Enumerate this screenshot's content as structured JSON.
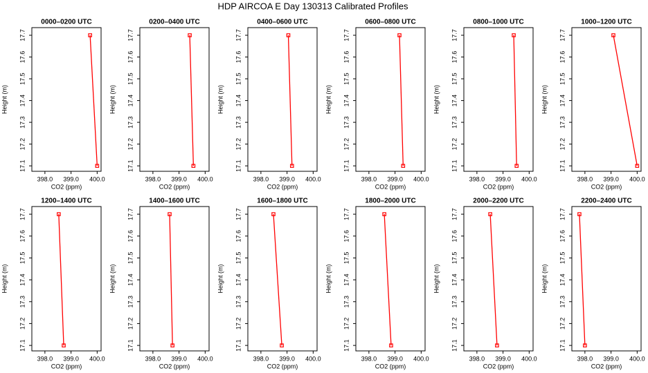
{
  "title": "HDP AIRCOA E  Day 130313  Calibrated Profiles",
  "chart_data": [
    {
      "type": "line",
      "title": "0000–0200 UTC",
      "x_label": "CO2 (ppm)",
      "y_label": "Height (m)",
      "color": "#ff0000",
      "x": [
        399.73,
        400.0
      ],
      "values": [
        17.7,
        17.1
      ],
      "xlim": [
        397.5,
        400.15
      ],
      "ylim": [
        17.075,
        17.735
      ],
      "xticks": [
        {
          "value": 398,
          "label": "398.0"
        },
        {
          "value": 399,
          "label": "399.0"
        },
        {
          "value": 400,
          "label": "400.0"
        }
      ],
      "yticks": [
        17.1,
        17.2,
        17.3,
        17.4,
        17.5,
        17.6,
        17.7
      ]
    },
    {
      "type": "line",
      "title": "0200–0400 UTC",
      "x_label": "CO2 (ppm)",
      "y_label": "Height (m)",
      "color": "#ff0000",
      "x": [
        399.41,
        399.55
      ],
      "values": [
        17.7,
        17.1
      ],
      "xlim": [
        397.5,
        400.15
      ],
      "ylim": [
        17.075,
        17.735
      ],
      "xticks": [
        {
          "value": 398,
          "label": "398.0"
        },
        {
          "value": 399,
          "label": "399.0"
        },
        {
          "value": 400,
          "label": "400.0"
        }
      ],
      "yticks": [
        17.1,
        17.2,
        17.3,
        17.4,
        17.5,
        17.6,
        17.7
      ]
    },
    {
      "type": "line",
      "title": "0400–0600 UTC",
      "x_label": "CO2 (ppm)",
      "y_label": "Height (m)",
      "color": "#ff0000",
      "x": [
        399.05,
        399.19
      ],
      "values": [
        17.7,
        17.1
      ],
      "xlim": [
        397.5,
        400.15
      ],
      "ylim": [
        17.075,
        17.735
      ],
      "xticks": [
        {
          "value": 398,
          "label": "398.0"
        },
        {
          "value": 399,
          "label": "399.0"
        },
        {
          "value": 400,
          "label": "400.0"
        }
      ],
      "yticks": [
        17.1,
        17.2,
        17.3,
        17.4,
        17.5,
        17.6,
        17.7
      ]
    },
    {
      "type": "line",
      "title": "0600–0800 UTC",
      "x_label": "CO2 (ppm)",
      "y_label": "Height (m)",
      "color": "#ff0000",
      "x": [
        399.17,
        399.31
      ],
      "values": [
        17.7,
        17.1
      ],
      "xlim": [
        397.5,
        400.15
      ],
      "ylim": [
        17.075,
        17.735
      ],
      "xticks": [
        {
          "value": 398,
          "label": "398.0"
        },
        {
          "value": 399,
          "label": "399.0"
        },
        {
          "value": 400,
          "label": "400.0"
        }
      ],
      "yticks": [
        17.1,
        17.2,
        17.3,
        17.4,
        17.5,
        17.6,
        17.7
      ]
    },
    {
      "type": "line",
      "title": "0800–1000 UTC",
      "x_label": "CO2 (ppm)",
      "y_label": "Height (m)",
      "color": "#ff0000",
      "x": [
        399.41,
        399.52
      ],
      "values": [
        17.7,
        17.1
      ],
      "xlim": [
        397.5,
        400.15
      ],
      "ylim": [
        17.075,
        17.735
      ],
      "xticks": [
        {
          "value": 398,
          "label": "398.0"
        },
        {
          "value": 399,
          "label": "399.0"
        },
        {
          "value": 400,
          "label": "400.0"
        }
      ],
      "yticks": [
        17.1,
        17.2,
        17.3,
        17.4,
        17.5,
        17.6,
        17.7
      ]
    },
    {
      "type": "line",
      "title": "1000–1200 UTC",
      "x_label": "CO2 (ppm)",
      "y_label": "Height (m)",
      "color": "#ff0000",
      "x": [
        399.09,
        400.0
      ],
      "values": [
        17.7,
        17.1
      ],
      "xlim": [
        397.5,
        400.15
      ],
      "ylim": [
        17.075,
        17.735
      ],
      "xticks": [
        {
          "value": 398,
          "label": "398.0"
        },
        {
          "value": 399,
          "label": "399.0"
        },
        {
          "value": 400,
          "label": "400.0"
        }
      ],
      "yticks": [
        17.1,
        17.2,
        17.3,
        17.4,
        17.5,
        17.6,
        17.7
      ]
    },
    {
      "type": "line",
      "title": "1200–1400 UTC",
      "x_label": "CO2 (ppm)",
      "y_label": "Height (m)",
      "color": "#ff0000",
      "x": [
        398.53,
        398.72
      ],
      "values": [
        17.7,
        17.1
      ],
      "xlim": [
        397.5,
        400.15
      ],
      "ylim": [
        17.075,
        17.735
      ],
      "xticks": [
        {
          "value": 398,
          "label": "398.0"
        },
        {
          "value": 399,
          "label": "399.0"
        },
        {
          "value": 400,
          "label": "400.0"
        }
      ],
      "yticks": [
        17.1,
        17.2,
        17.3,
        17.4,
        17.5,
        17.6,
        17.7
      ]
    },
    {
      "type": "line",
      "title": "1400–1600 UTC",
      "x_label": "CO2 (ppm)",
      "y_label": "Height (m)",
      "color": "#ff0000",
      "x": [
        398.64,
        398.75
      ],
      "values": [
        17.7,
        17.1
      ],
      "xlim": [
        397.5,
        400.15
      ],
      "ylim": [
        17.075,
        17.735
      ],
      "xticks": [
        {
          "value": 398,
          "label": "398.0"
        },
        {
          "value": 399,
          "label": "399.0"
        },
        {
          "value": 400,
          "label": "400.0"
        }
      ],
      "yticks": [
        17.1,
        17.2,
        17.3,
        17.4,
        17.5,
        17.6,
        17.7
      ]
    },
    {
      "type": "line",
      "title": "1600–1800 UTC",
      "x_label": "CO2 (ppm)",
      "y_label": "Height (m)",
      "color": "#ff0000",
      "x": [
        398.48,
        398.8
      ],
      "values": [
        17.7,
        17.1
      ],
      "xlim": [
        397.5,
        400.15
      ],
      "ylim": [
        17.075,
        17.735
      ],
      "xticks": [
        {
          "value": 398,
          "label": "398.0"
        },
        {
          "value": 399,
          "label": "399.0"
        },
        {
          "value": 400,
          "label": "400.0"
        }
      ],
      "yticks": [
        17.1,
        17.2,
        17.3,
        17.4,
        17.5,
        17.6,
        17.7
      ]
    },
    {
      "type": "line",
      "title": "1800–2000 UTC",
      "x_label": "CO2 (ppm)",
      "y_label": "Height (m)",
      "color": "#ff0000",
      "x": [
        398.59,
        398.85
      ],
      "values": [
        17.7,
        17.1
      ],
      "xlim": [
        397.5,
        400.15
      ],
      "ylim": [
        17.075,
        17.735
      ],
      "xticks": [
        {
          "value": 398,
          "label": "398.0"
        },
        {
          "value": 399,
          "label": "399.0"
        },
        {
          "value": 400,
          "label": "400.0"
        }
      ],
      "yticks": [
        17.1,
        17.2,
        17.3,
        17.4,
        17.5,
        17.6,
        17.7
      ]
    },
    {
      "type": "line",
      "title": "2000–2200 UTC",
      "x_label": "CO2 (ppm)",
      "y_label": "Height (m)",
      "color": "#ff0000",
      "x": [
        398.51,
        398.77
      ],
      "values": [
        17.7,
        17.1
      ],
      "xlim": [
        397.5,
        400.15
      ],
      "ylim": [
        17.075,
        17.735
      ],
      "xticks": [
        {
          "value": 398,
          "label": "398.0"
        },
        {
          "value": 399,
          "label": "399.0"
        },
        {
          "value": 400,
          "label": "400.0"
        }
      ],
      "yticks": [
        17.1,
        17.2,
        17.3,
        17.4,
        17.5,
        17.6,
        17.7
      ]
    },
    {
      "type": "line",
      "title": "2200–2400 UTC",
      "x_label": "CO2 (ppm)",
      "y_label": "Height (m)",
      "color": "#ff0000",
      "x": [
        397.79,
        398.0
      ],
      "values": [
        17.7,
        17.1
      ],
      "xlim": [
        397.5,
        400.15
      ],
      "ylim": [
        17.075,
        17.735
      ],
      "xticks": [
        {
          "value": 398,
          "label": "398.0"
        },
        {
          "value": 399,
          "label": "399.0"
        },
        {
          "value": 400,
          "label": "400.0"
        }
      ],
      "yticks": [
        17.1,
        17.2,
        17.3,
        17.4,
        17.5,
        17.6,
        17.7
      ]
    }
  ]
}
